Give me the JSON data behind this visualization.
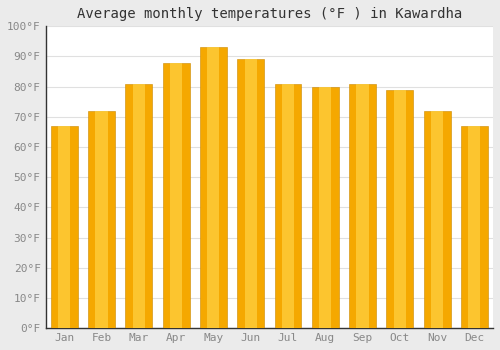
{
  "months": [
    "Jan",
    "Feb",
    "Mar",
    "Apr",
    "May",
    "Jun",
    "Jul",
    "Aug",
    "Sep",
    "Oct",
    "Nov",
    "Dec"
  ],
  "values": [
    67,
    72,
    81,
    88,
    93,
    89,
    81,
    80,
    81,
    79,
    72,
    67
  ],
  "bar_color_dark": "#F5A800",
  "bar_color_light": "#FFD040",
  "title": "Average monthly temperatures (°F ) in Kawardha",
  "ylim": [
    0,
    100
  ],
  "yticks": [
    0,
    10,
    20,
    30,
    40,
    50,
    60,
    70,
    80,
    90,
    100
  ],
  "ytick_labels": [
    "0°F",
    "10°F",
    "20°F",
    "30°F",
    "40°F",
    "50°F",
    "60°F",
    "70°F",
    "80°F",
    "90°F",
    "100°F"
  ],
  "bg_outer": "#ebebeb",
  "bg_inner": "#ffffff",
  "grid_color": "#e0e0e0",
  "title_fontsize": 10,
  "tick_fontsize": 8,
  "font_family": "monospace",
  "tick_color": "#888888",
  "spine_color": "#333333"
}
